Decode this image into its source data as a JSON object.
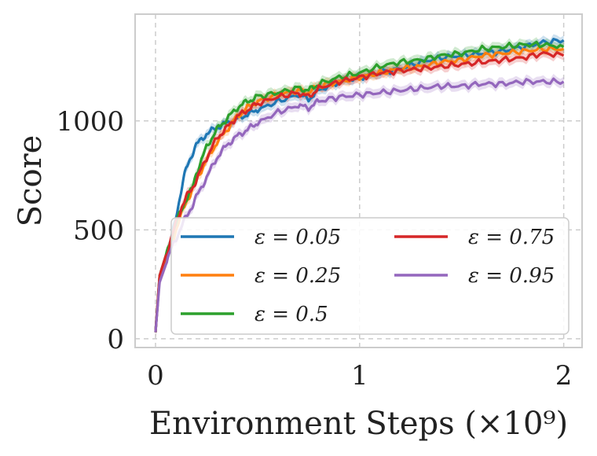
{
  "chart_data": {
    "type": "line",
    "title": "",
    "xlabel": "Environment Steps (×10⁹)",
    "ylabel": "Score",
    "xlim": [
      -0.1,
      2.09
    ],
    "ylim": [
      -40,
      1490
    ],
    "xticks": [
      0,
      1,
      2
    ],
    "xtick_labels": [
      "0",
      "1",
      "2"
    ],
    "yticks": [
      0,
      500,
      1000
    ],
    "ytick_labels": [
      "0",
      "500",
      "1000"
    ],
    "grid": true,
    "legend_position": "lower-right",
    "legend_columns": 2,
    "x": [
      0,
      0.02,
      0.05,
      0.08,
      0.1,
      0.13,
      0.15,
      0.18,
      0.2,
      0.25,
      0.3,
      0.35,
      0.4,
      0.45,
      0.5,
      0.6,
      0.7,
      0.75,
      0.8,
      0.9,
      1.0,
      1.1,
      1.2,
      1.3,
      1.4,
      1.5,
      1.6,
      1.7,
      1.8,
      1.9,
      2.0
    ],
    "series": [
      {
        "name": "ε = 0.05",
        "color": "#1f77b4",
        "values": [
          30,
          280,
          370,
          470,
          560,
          700,
          780,
          850,
          890,
          940,
          970,
          990,
          1010,
          1030,
          1050,
          1090,
          1120,
          1100,
          1140,
          1180,
          1200,
          1220,
          1240,
          1270,
          1290,
          1300,
          1310,
          1320,
          1340,
          1360,
          1370
        ]
      },
      {
        "name": "ε = 0.25",
        "color": "#ff7f0e",
        "values": [
          30,
          280,
          360,
          440,
          500,
          580,
          630,
          680,
          730,
          820,
          900,
          960,
          1020,
          1060,
          1090,
          1120,
          1140,
          1130,
          1160,
          1180,
          1200,
          1220,
          1240,
          1250,
          1270,
          1280,
          1300,
          1310,
          1320,
          1330,
          1330
        ]
      },
      {
        "name": "ε = 0.5",
        "color": "#2ca02c",
        "values": [
          30,
          290,
          380,
          470,
          530,
          600,
          640,
          690,
          760,
          880,
          960,
          1010,
          1060,
          1090,
          1110,
          1130,
          1150,
          1140,
          1170,
          1200,
          1220,
          1250,
          1270,
          1280,
          1300,
          1310,
          1330,
          1340,
          1350,
          1350,
          1340
        ]
      },
      {
        "name": "ε = 0.75",
        "color": "#d62728",
        "values": [
          30,
          290,
          380,
          470,
          530,
          610,
          650,
          690,
          730,
          830,
          920,
          970,
          1020,
          1050,
          1080,
          1110,
          1130,
          1110,
          1150,
          1180,
          1200,
          1220,
          1230,
          1240,
          1250,
          1260,
          1270,
          1280,
          1290,
          1310,
          1300
        ]
      },
      {
        "name": "ε = 0.95",
        "color": "#9467bd",
        "values": [
          30,
          260,
          340,
          420,
          460,
          520,
          560,
          610,
          650,
          740,
          830,
          890,
          930,
          960,
          990,
          1040,
          1070,
          1060,
          1090,
          1110,
          1120,
          1130,
          1140,
          1150,
          1160,
          1160,
          1170,
          1170,
          1180,
          1180,
          1180
        ]
      }
    ]
  }
}
